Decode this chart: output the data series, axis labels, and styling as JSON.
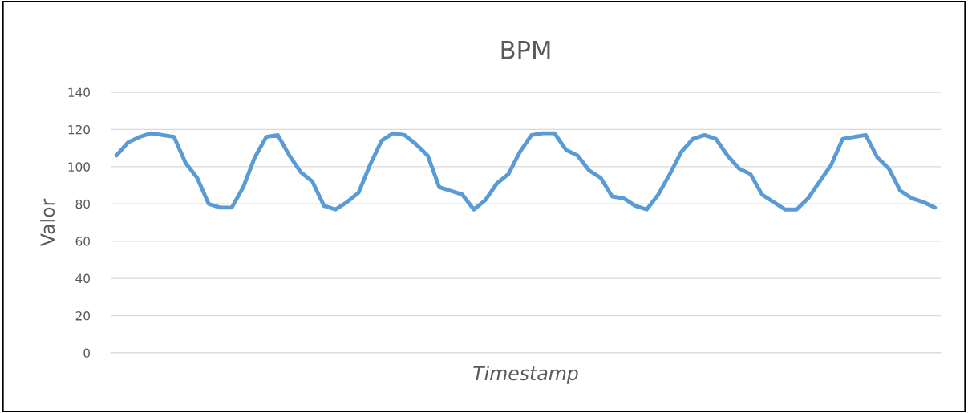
{
  "chart_data": {
    "type": "line",
    "title": "BPM",
    "xlabel": "Timestamp",
    "ylabel": "Valor",
    "categories": [
      null,
      null,
      null,
      null,
      null,
      null,
      null,
      null,
      null,
      null,
      null,
      null,
      null,
      null,
      null,
      null,
      null,
      null,
      null,
      null,
      null,
      null,
      null,
      null,
      null,
      null,
      null,
      null,
      null,
      null,
      null,
      null,
      null,
      null,
      null,
      null,
      null,
      null,
      null,
      null,
      null,
      null,
      null,
      null,
      null,
      null,
      null,
      null,
      null,
      null,
      null,
      null,
      null,
      null,
      null,
      null,
      null,
      null,
      null,
      null,
      null,
      null,
      null,
      null,
      null,
      null,
      null,
      null,
      null,
      null,
      null,
      null
    ],
    "series": [
      {
        "color": "#5b9bd5",
        "values": [
          106,
          113,
          116,
          118,
          117,
          116,
          102,
          94,
          80,
          78,
          78,
          89,
          105,
          116,
          117,
          106,
          97,
          92,
          79,
          77,
          81,
          86,
          101,
          114,
          118,
          117,
          112,
          106,
          89,
          87,
          85,
          77,
          82,
          91,
          96,
          108,
          117,
          118,
          118,
          109,
          106,
          98,
          94,
          84,
          83,
          79,
          77,
          85,
          96,
          108,
          115,
          117,
          115,
          106,
          99,
          96,
          85,
          81,
          77,
          77,
          83,
          92,
          101,
          115,
          116,
          117,
          105,
          99,
          87,
          83,
          81,
          78
        ]
      }
    ],
    "ylim": [
      0,
      140
    ],
    "yticks": [
      0,
      20,
      40,
      60,
      80,
      100,
      120,
      140
    ],
    "grid": "y",
    "legend": false,
    "marker": "none",
    "line_style": "solid"
  }
}
